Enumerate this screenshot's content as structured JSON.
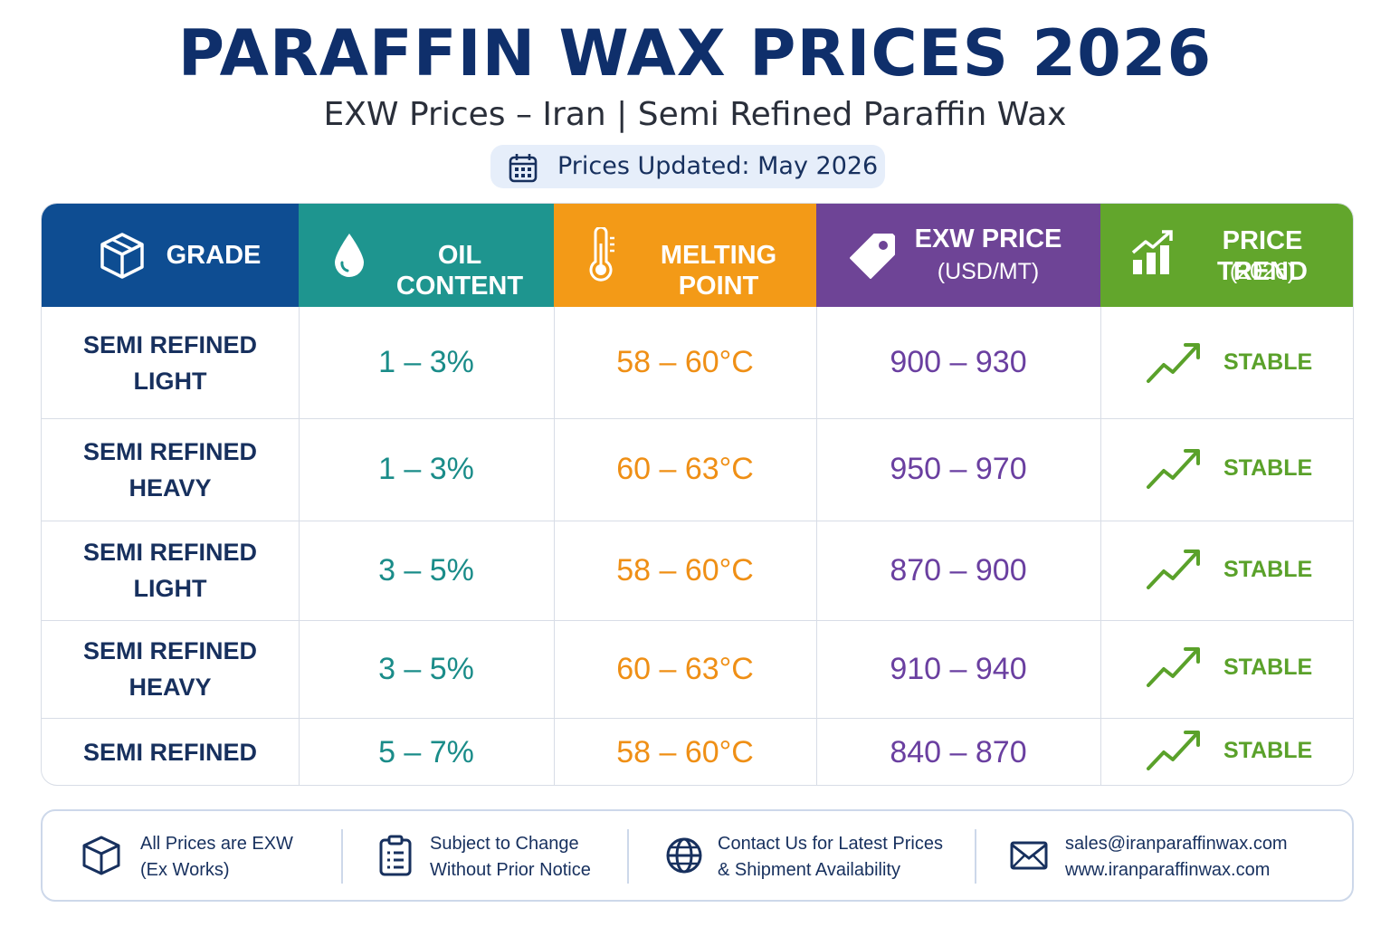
{
  "header": {
    "title": "PARAFFIN WAX PRICES 2026",
    "subtitle": "EXW Prices – Iran  |  Semi Refined Paraffin Wax",
    "updated": "Prices Updated: May 2026"
  },
  "table": {
    "columns": [
      {
        "line1": "GRADE",
        "line2": "",
        "color": "#0e4d92",
        "icon": "box-icon"
      },
      {
        "line1": "OIL CONTENT",
        "line2": "",
        "color": "#1e958f",
        "icon": "droplet-icon"
      },
      {
        "line1": "MELTING POINT",
        "line2": "",
        "color": "#f39a17",
        "icon": "thermometer-icon"
      },
      {
        "line1": "EXW PRICE",
        "line2": "(USD/MT)",
        "color": "#6e4496",
        "icon": "price-tag-icon"
      },
      {
        "line1": "PRICE TREND",
        "line2": "(2026)",
        "color": "#62a62c",
        "icon": "bar-chart-icon"
      }
    ],
    "rows": [
      {
        "grade_l1": "SEMI REFINED",
        "grade_l2": "LIGHT",
        "oil": "1 – 3%",
        "melt": "58 – 60°C",
        "price": "900 – 930",
        "trend": "STABLE"
      },
      {
        "grade_l1": "SEMI REFINED",
        "grade_l2": "HEAVY",
        "oil": "1 – 3%",
        "melt": "60 – 63°C",
        "price": "950 – 970",
        "trend": "STABLE"
      },
      {
        "grade_l1": "SEMI REFINED",
        "grade_l2": "LIGHT",
        "oil": "3 – 5%",
        "melt": "58 – 60°C",
        "price": "870 – 900",
        "trend": "STABLE"
      },
      {
        "grade_l1": "SEMI REFINED",
        "grade_l2": "HEAVY",
        "oil": "3 – 5%",
        "melt": "60 – 63°C",
        "price": "910 – 940",
        "trend": "STABLE"
      },
      {
        "grade_l1": "SEMI REFINED",
        "grade_l2": "",
        "oil": "5 – 7%",
        "melt": "58 – 60°C",
        "price": "840 – 870",
        "trend": "STABLE"
      }
    ]
  },
  "footer": {
    "items": [
      {
        "l1": "All Prices are EXW",
        "l2": "(Ex Works)",
        "icon": "box-icon"
      },
      {
        "l1": "Subject to Change",
        "l2": "Without Prior Notice",
        "icon": "clipboard-icon"
      },
      {
        "l1": "Contact Us for Latest Prices",
        "l2": "& Shipment Availability",
        "icon": "globe-icon"
      },
      {
        "l1": "sales@iranparaffinwax.com",
        "l2": "www.iranparaffinwax.com",
        "icon": "mail-icon"
      }
    ]
  }
}
